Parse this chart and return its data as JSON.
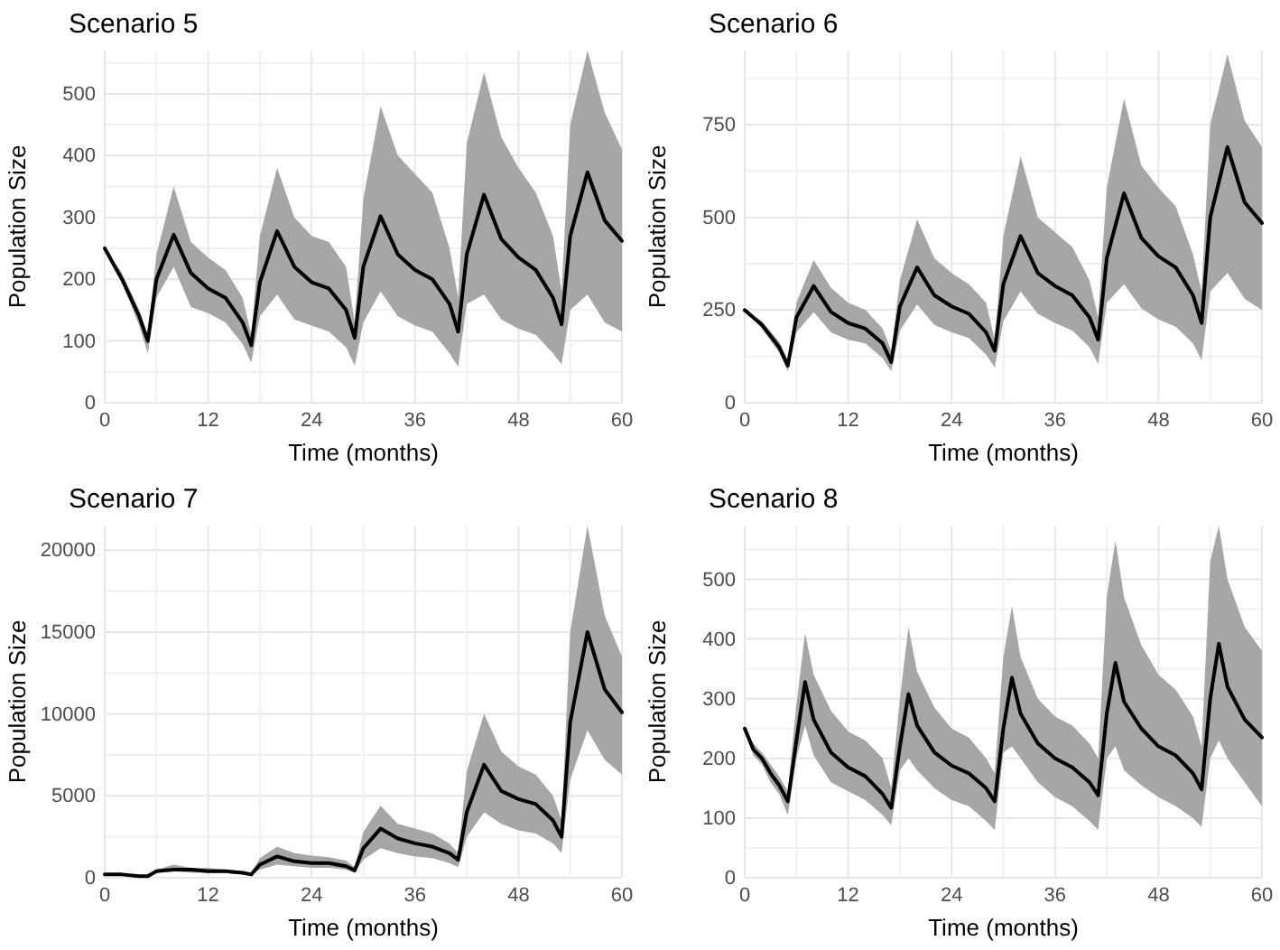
{
  "chart_data": [
    {
      "type": "line",
      "title": "Scenario 5",
      "xlabel": "Time (months)",
      "ylabel": "Population Size",
      "xlim": [
        0,
        60
      ],
      "xticks": [
        0,
        12,
        24,
        36,
        48,
        60
      ],
      "ylim": [
        0,
        570
      ],
      "yticks": [
        0,
        100,
        200,
        300,
        400,
        500
      ],
      "grid": true,
      "series": [
        {
          "color": "#000000",
          "x": [
            0,
            2,
            4,
            5,
            6,
            8,
            10,
            12,
            14,
            16,
            17,
            18,
            20,
            22,
            24,
            26,
            28,
            29,
            30,
            32,
            34,
            36,
            38,
            40,
            41,
            42,
            44,
            46,
            48,
            50,
            52,
            53,
            54,
            56,
            58,
            60
          ],
          "values": [
            250,
            200,
            140,
            100,
            200,
            272,
            210,
            185,
            170,
            130,
            93,
            195,
            278,
            220,
            195,
            185,
            150,
            105,
            220,
            302,
            240,
            215,
            200,
            160,
            115,
            240,
            337,
            265,
            235,
            215,
            170,
            127,
            270,
            373,
            295,
            262
          ],
          "lower": [
            250,
            195,
            125,
            80,
            170,
            220,
            155,
            145,
            130,
            95,
            65,
            140,
            175,
            135,
            125,
            115,
            90,
            60,
            130,
            180,
            140,
            125,
            115,
            80,
            58,
            160,
            175,
            135,
            120,
            110,
            80,
            62,
            150,
            175,
            130,
            115
          ],
          "upper": [
            250,
            210,
            150,
            110,
            240,
            350,
            260,
            235,
            215,
            170,
            110,
            270,
            380,
            300,
            270,
            260,
            220,
            130,
            330,
            480,
            400,
            370,
            340,
            250,
            170,
            420,
            535,
            430,
            380,
            340,
            270,
            180,
            450,
            570,
            470,
            410
          ]
        }
      ]
    },
    {
      "type": "line",
      "title": "Scenario 6",
      "xlabel": "Time (months)",
      "ylabel": "Population Size",
      "xlim": [
        0,
        60
      ],
      "xticks": [
        0,
        12,
        24,
        36,
        48,
        60
      ],
      "ylim": [
        0,
        950
      ],
      "yticks": [
        0,
        250,
        500,
        750
      ],
      "grid": true,
      "series": [
        {
          "color": "#000000",
          "x": [
            0,
            2,
            4,
            5,
            6,
            8,
            10,
            12,
            14,
            16,
            17,
            18,
            20,
            22,
            24,
            26,
            28,
            29,
            30,
            32,
            34,
            36,
            38,
            40,
            41,
            42,
            44,
            46,
            48,
            50,
            52,
            53,
            54,
            56,
            58,
            60
          ],
          "values": [
            250,
            210,
            150,
            100,
            230,
            315,
            245,
            215,
            200,
            160,
            110,
            260,
            365,
            290,
            260,
            240,
            190,
            140,
            320,
            450,
            350,
            315,
            290,
            230,
            170,
            390,
            565,
            445,
            395,
            365,
            290,
            215,
            500,
            690,
            540,
            485
          ],
          "lower": [
            250,
            200,
            135,
            85,
            190,
            245,
            190,
            170,
            160,
            120,
            85,
            195,
            265,
            210,
            190,
            175,
            130,
            95,
            220,
            300,
            240,
            215,
            195,
            150,
            105,
            270,
            320,
            255,
            225,
            205,
            160,
            115,
            300,
            350,
            280,
            250
          ],
          "upper": [
            250,
            220,
            165,
            115,
            270,
            385,
            310,
            270,
            250,
            200,
            140,
            330,
            495,
            390,
            350,
            320,
            270,
            170,
            450,
            665,
            500,
            460,
            420,
            330,
            230,
            580,
            820,
            640,
            580,
            530,
            400,
            300,
            750,
            940,
            760,
            690
          ]
        }
      ]
    },
    {
      "type": "line",
      "title": "Scenario 7",
      "xlabel": "Time (months)",
      "ylabel": "Population Size",
      "xlim": [
        0,
        60
      ],
      "xticks": [
        0,
        12,
        24,
        36,
        48,
        60
      ],
      "ylim": [
        0,
        21500
      ],
      "yticks": [
        0,
        5000,
        10000,
        15000,
        20000
      ],
      "grid": true,
      "series": [
        {
          "color": "#000000",
          "x": [
            0,
            2,
            4,
            5,
            6,
            8,
            10,
            12,
            14,
            16,
            17,
            18,
            20,
            22,
            24,
            26,
            28,
            29,
            30,
            32,
            34,
            36,
            38,
            40,
            41,
            42,
            44,
            46,
            48,
            50,
            52,
            53,
            54,
            56,
            58,
            60
          ],
          "values": [
            200,
            200,
            100,
            100,
            400,
            500,
            500,
            400,
            400,
            300,
            200,
            800,
            1300,
            1000,
            900,
            900,
            700,
            450,
            1800,
            3000,
            2400,
            2100,
            1900,
            1500,
            1100,
            4000,
            6900,
            5300,
            4800,
            4500,
            3500,
            2500,
            9500,
            15000,
            11500,
            10100
          ],
          "lower": [
            200,
            200,
            100,
            100,
            300,
            400,
            300,
            300,
            300,
            200,
            200,
            500,
            800,
            700,
            600,
            600,
            500,
            300,
            1100,
            1800,
            1500,
            1300,
            1200,
            900,
            650,
            2500,
            4000,
            3300,
            2900,
            2700,
            2100,
            1500,
            6000,
            9000,
            7200,
            6300
          ],
          "upper": [
            200,
            200,
            100,
            100,
            500,
            800,
            600,
            600,
            500,
            400,
            300,
            1200,
            1900,
            1500,
            1350,
            1250,
            1050,
            650,
            2800,
            4400,
            3300,
            3000,
            2700,
            2100,
            1500,
            6500,
            10000,
            7700,
            6800,
            6300,
            5000,
            3500,
            15000,
            21500,
            16000,
            13500
          ]
        }
      ]
    },
    {
      "type": "line",
      "title": "Scenario 8",
      "xlabel": "Time (months)",
      "ylabel": "Population Size",
      "xlim": [
        0,
        60
      ],
      "xticks": [
        0,
        12,
        24,
        36,
        48,
        60
      ],
      "ylim": [
        0,
        590
      ],
      "yticks": [
        0,
        100,
        200,
        300,
        400,
        500
      ],
      "grid": true,
      "series": [
        {
          "color": "#000000",
          "x": [
            0,
            1,
            2,
            3,
            4,
            5,
            6,
            7,
            8,
            10,
            12,
            14,
            16,
            17,
            18,
            19,
            20,
            22,
            24,
            26,
            28,
            29,
            30,
            31,
            32,
            34,
            36,
            38,
            40,
            41,
            42,
            43,
            44,
            46,
            48,
            50,
            52,
            53,
            54,
            55,
            56,
            58,
            60
          ],
          "values": [
            250,
            215,
            200,
            175,
            155,
            128,
            230,
            328,
            265,
            210,
            185,
            170,
            140,
            117,
            220,
            308,
            255,
            210,
            188,
            175,
            150,
            128,
            250,
            335,
            275,
            225,
            200,
            185,
            160,
            138,
            275,
            360,
            295,
            250,
            220,
            205,
            175,
            148,
            300,
            392,
            320,
            265,
            235
          ],
          "lower": [
            250,
            205,
            190,
            160,
            140,
            105,
            200,
            255,
            205,
            160,
            145,
            130,
            105,
            88,
            180,
            200,
            180,
            150,
            130,
            120,
            95,
            80,
            210,
            220,
            200,
            160,
            135,
            120,
            95,
            80,
            200,
            220,
            180,
            155,
            135,
            120,
            100,
            85,
            200,
            230,
            200,
            160,
            120
          ],
          "upper": [
            250,
            225,
            210,
            190,
            170,
            145,
            290,
            410,
            340,
            280,
            245,
            230,
            200,
            150,
            300,
            420,
            345,
            285,
            250,
            235,
            200,
            175,
            370,
            455,
            370,
            300,
            270,
            255,
            225,
            200,
            470,
            565,
            470,
            390,
            340,
            315,
            270,
            220,
            530,
            590,
            500,
            420,
            380
          ]
        }
      ]
    }
  ]
}
